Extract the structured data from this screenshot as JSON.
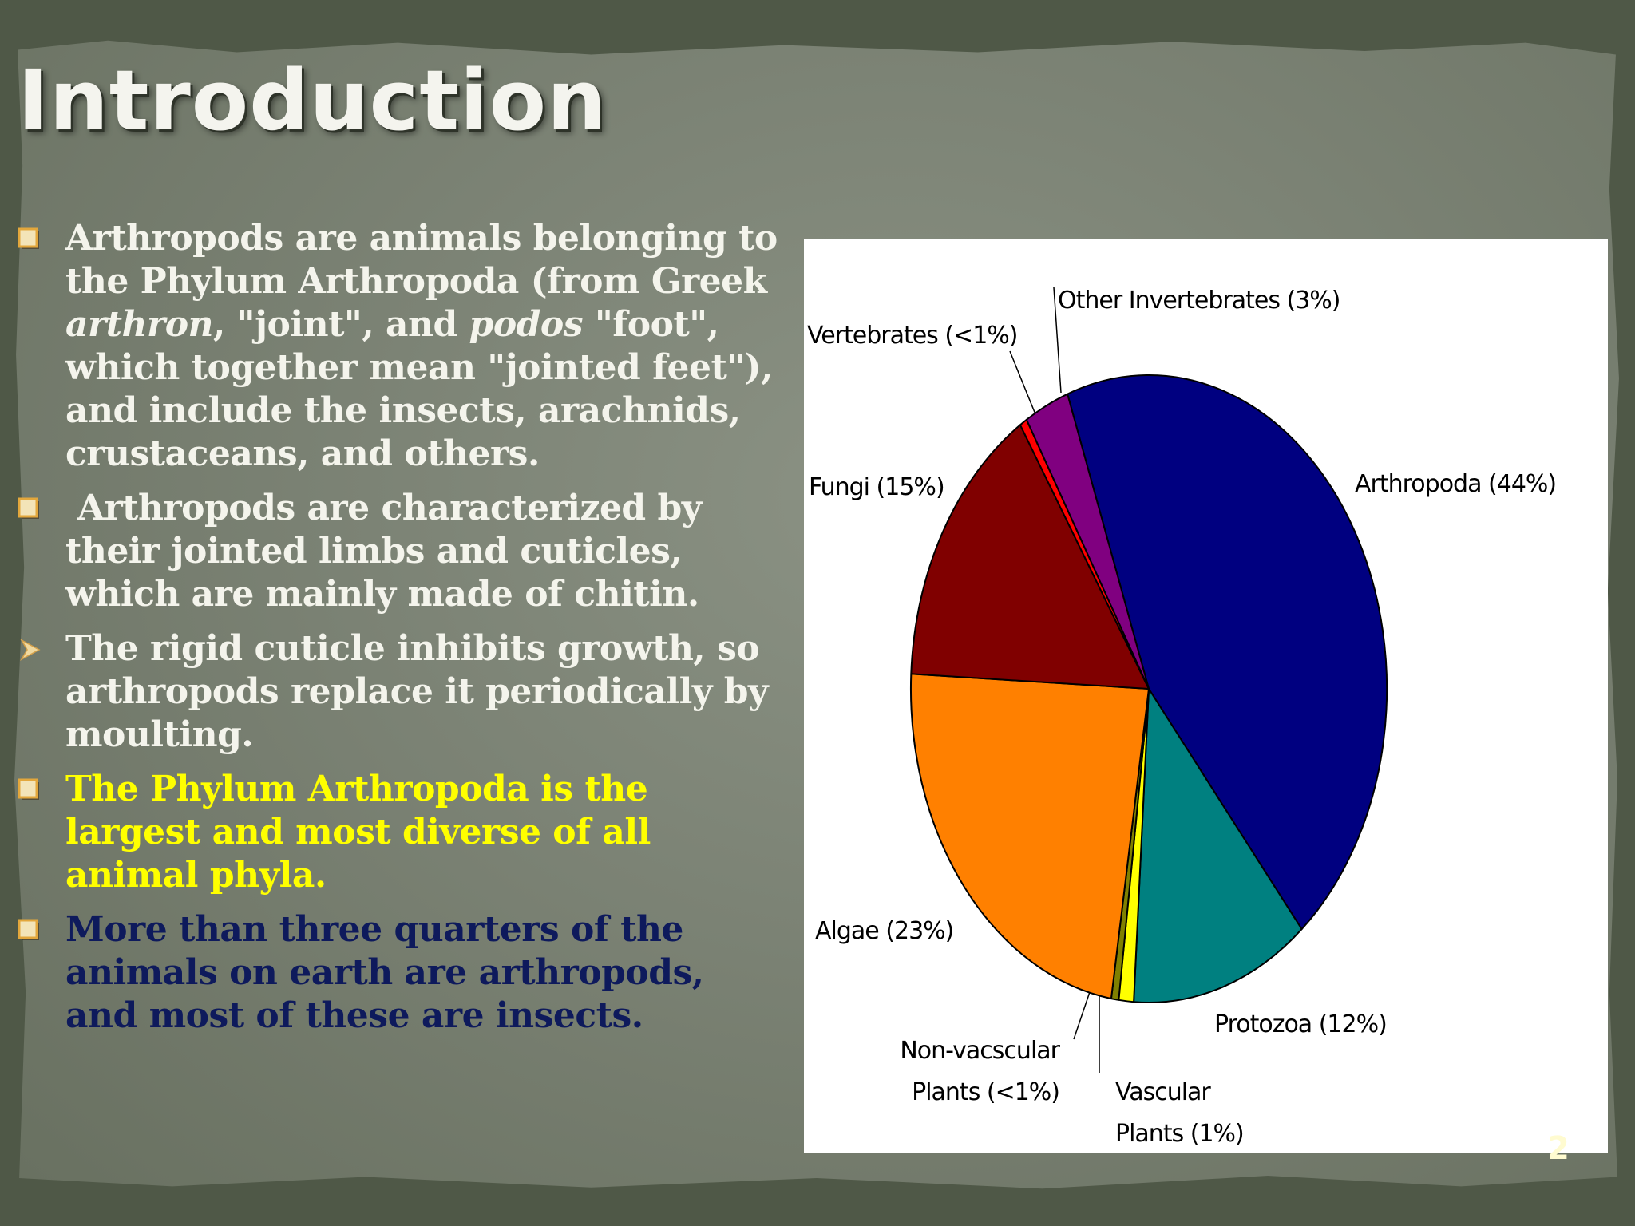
{
  "slide": {
    "title": "Introduction",
    "page_number": "2"
  },
  "bullets": [
    {
      "marker": "square-bullet-icon",
      "parts": [
        "Arthropods are animals belonging to the Phylum Arthropoda (from Greek ",
        "arthron",
        ", \"joint\", and ",
        "podos",
        " \"foot\", which together mean \"jointed feet\"), and include the insects, arachnids, crustaceans, and others."
      ]
    },
    {
      "marker": "square-bullet-icon",
      "text": " Arthropods are characterized by their jointed limbs and cuticles, which are mainly made of chitin."
    },
    {
      "marker": "arrow-bullet-icon",
      "text": "The rigid cuticle inhibits growth, so arthropods replace it periodically by moulting."
    },
    {
      "marker": "square-bullet-icon",
      "text": "The Phylum Arthropoda is the largest and most diverse of all animal phyla.",
      "color": "#ffff00"
    },
    {
      "marker": "square-bullet-icon",
      "text": "More than three quarters of the animals on earth are arthropods, and most of these are insects.",
      "color": "#0e1a5c"
    }
  ],
  "colors": {
    "bullet_marker": "#e3a73c",
    "body_text": "#f4f4ec"
  },
  "chart_data": {
    "type": "pie",
    "title": "",
    "start_angle_deg": 340,
    "direction": "clockwise",
    "slices": [
      {
        "label": "Arthropoda (44%)",
        "line1": "Arthropoda (44%)",
        "line2": "",
        "value": 44,
        "color": "#000080"
      },
      {
        "label": "Protozoa (12%)",
        "line1": "Protozoa (12%)",
        "line2": "",
        "value": 12,
        "color": "#008080"
      },
      {
        "label": "Vascular Plants (1%)",
        "line1": "Vascular",
        "line2": "Plants (1%)",
        "value": 1,
        "color": "#ffff00"
      },
      {
        "label": "Non-vacscular Plants (<1%)",
        "line1": "Non-vacscular",
        "line2": "Plants (<1%)",
        "value": 0.5,
        "color": "#808000"
      },
      {
        "label": "Algae (23%)",
        "line1": "Algae (23%)",
        "line2": "",
        "value": 23,
        "color": "#ff8000"
      },
      {
        "label": "Fungi (15%)",
        "line1": "Fungi (15%)",
        "line2": "",
        "value": 15,
        "color": "#800000"
      },
      {
        "label": "Vertebrates (<1%)",
        "line1": "Vertebrates (<1%)",
        "line2": "",
        "value": 0.5,
        "color": "#ff0000"
      },
      {
        "label": "Other Invertebrates (3%)",
        "line1": "Other Invertebrates (3%)",
        "line2": "",
        "value": 3,
        "color": "#800080"
      }
    ]
  }
}
